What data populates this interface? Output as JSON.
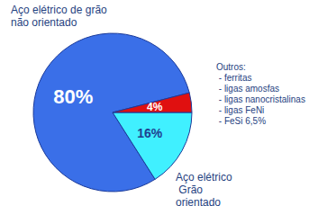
{
  "chart_data": {
    "type": "pie",
    "categories": [
      "Aço elétrico de grão não orientado",
      "Aço elétrico Grão orientado",
      "Outros:\n - ferritas\n - ligas amosfas\n - ligas nanocristalinas\n - ligas FeNi\n - FeSi 6,5%"
    ],
    "values": [
      80,
      16,
      4
    ],
    "value_labels": [
      "80%",
      "16%",
      "4%"
    ],
    "colors": [
      "#3a6fe8",
      "#40f0ff",
      "#e01010"
    ],
    "data_labels": true,
    "legend": false
  }
}
